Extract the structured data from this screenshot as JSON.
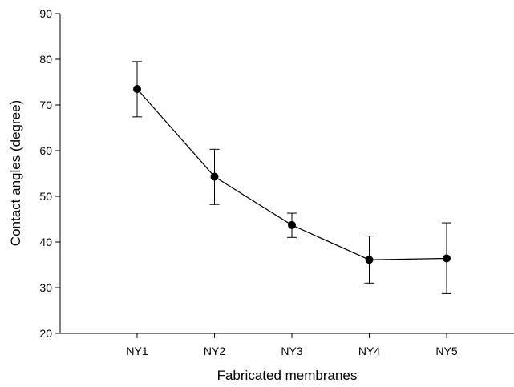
{
  "chart_data": {
    "type": "line",
    "title": "",
    "xlabel": "Fabricated membranes",
    "ylabel": "Contact angles (degree)",
    "categories": [
      "NY1",
      "NY2",
      "NY3",
      "NY4",
      "NY5"
    ],
    "ylim": [
      20,
      90
    ],
    "yticks": [
      20,
      30,
      40,
      50,
      60,
      70,
      80,
      90
    ],
    "series": [
      {
        "values": [
          73.5,
          54.3,
          43.7,
          36.1,
          36.4
        ],
        "error_low": [
          67.4,
          48.2,
          41.0,
          31.0,
          28.7
        ],
        "error_high": [
          79.5,
          60.3,
          46.3,
          41.3,
          44.2
        ],
        "marker": "filled-circle",
        "color": "#000000"
      }
    ],
    "grid": false,
    "legend": "none"
  }
}
